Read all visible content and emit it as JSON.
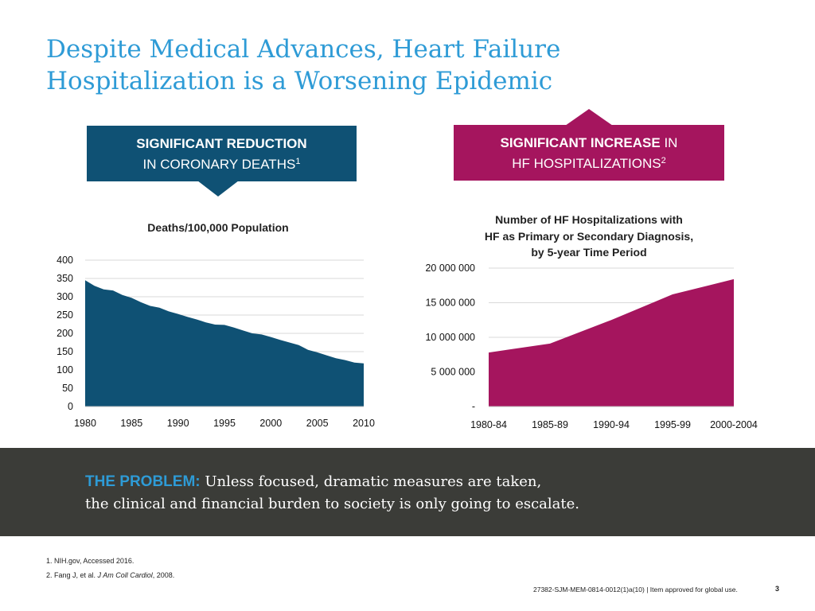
{
  "title": {
    "line1": "Despite Medical Advances, Heart Failure",
    "line2": "Hospitalization is a Worsening Epidemic"
  },
  "callouts": {
    "left": {
      "bold": "SIGNIFICANT REDUCTION",
      "line2": "IN CORONARY DEATHS",
      "ref": "1"
    },
    "right": {
      "bold": "SIGNIFICANT INCREASE",
      "rest": " IN",
      "line2": "HF HOSPITALIZATIONS",
      "ref": "2"
    }
  },
  "colors": {
    "title": "#2e9bd6",
    "navy": "#0f5174",
    "magenta": "#a5155e",
    "band": "#3b3c38"
  },
  "chart_data": [
    {
      "type": "area",
      "title": "Deaths/100,000 Population",
      "x": [
        1980,
        1981,
        1982,
        1983,
        1984,
        1985,
        1986,
        1987,
        1988,
        1989,
        1990,
        1991,
        1992,
        1993,
        1994,
        1995,
        1996,
        1997,
        1998,
        1999,
        2000,
        2001,
        2002,
        2003,
        2004,
        2005,
        2006,
        2007,
        2008,
        2009,
        2010
      ],
      "values": [
        345,
        330,
        320,
        317,
        305,
        297,
        285,
        275,
        270,
        260,
        253,
        245,
        238,
        230,
        224,
        223,
        216,
        208,
        200,
        197,
        190,
        182,
        175,
        168,
        155,
        148,
        140,
        132,
        127,
        120,
        118
      ],
      "ylim": [
        0,
        400
      ],
      "yticks": [
        "0",
        "50",
        "100",
        "150",
        "200",
        "250",
        "300",
        "350",
        "400"
      ],
      "xticks": [
        "1980",
        "1985",
        "1990",
        "1995",
        "2000",
        "2005",
        "2010"
      ],
      "color": "#0f5174",
      "grid": true
    },
    {
      "type": "area",
      "title_lines": [
        "Number of HF Hospitalizations with",
        "HF as Primary or Secondary Diagnosis,",
        "by 5-year Time Period"
      ],
      "categories": [
        "1980-84",
        "1985-89",
        "1990-94",
        "1995-99",
        "2000-2004"
      ],
      "values": [
        7800000,
        9100000,
        12500000,
        16200000,
        18400000
      ],
      "ylim": [
        0,
        20000000
      ],
      "yticks": [
        "-",
        "5 000 000",
        "10 000 000",
        "15 000 000",
        "20 000 000"
      ],
      "color": "#a5155e",
      "grid": true
    }
  ],
  "problem": {
    "label": "THE PROBLEM:",
    "line1": " Unless focused, dramatic measures are taken,",
    "line2": "the clinical and financial burden to society is only going to escalate."
  },
  "references": {
    "ref1": "1. NIH.gov, Accessed 2016.",
    "ref2_prefix": "2. Fang J, et al. ",
    "ref2_journal": "J Am Coll Cardiol",
    "ref2_suffix": ", 2008."
  },
  "footer": {
    "code": "27382-SJM-MEM-0814-0012(1)a(10) | Item approved for global use.",
    "page": "3"
  }
}
